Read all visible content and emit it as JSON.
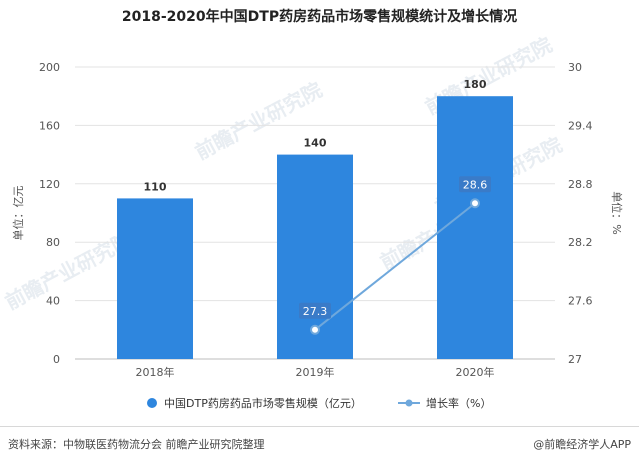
{
  "title": "2018-2020年中国DTP药房药品市场零售规模统计及增长情况",
  "source": "资料来源：中物联医药物流分会 前瞻产业研究院整理",
  "brand": "@前瞻经济学人APP",
  "watermark": "前瞻产业研究院",
  "colors": {
    "bar": "#2e86de",
    "line": "#6fa8dc",
    "grid": "#e3e3e3",
    "label_bg": "#3a7bc8"
  },
  "chart_data": {
    "type": "bar",
    "categories": [
      "2018年",
      "2019年",
      "2020年"
    ],
    "series": [
      {
        "name": "中国DTP药房药品市场零售规模（亿元）",
        "type": "bar",
        "axis": "left",
        "values": [
          110,
          140,
          180
        ]
      },
      {
        "name": "增长率（%）",
        "type": "line",
        "axis": "right",
        "values": [
          null,
          27.3,
          28.6
        ]
      }
    ],
    "y_left": {
      "label": "单位：亿元",
      "min": 0,
      "max": 200,
      "ticks": [
        0,
        40,
        80,
        120,
        160,
        200
      ]
    },
    "y_right": {
      "label": "单位：%",
      "min": 27,
      "max": 30,
      "ticks": [
        "27",
        "27.6",
        "28.2",
        "28.8",
        "29.4",
        "30"
      ]
    },
    "bar_labels": [
      "110",
      "140",
      "180"
    ],
    "line_labels": [
      "",
      "27.3",
      "28.6"
    ],
    "grid": true,
    "legend_position": "bottom"
  }
}
